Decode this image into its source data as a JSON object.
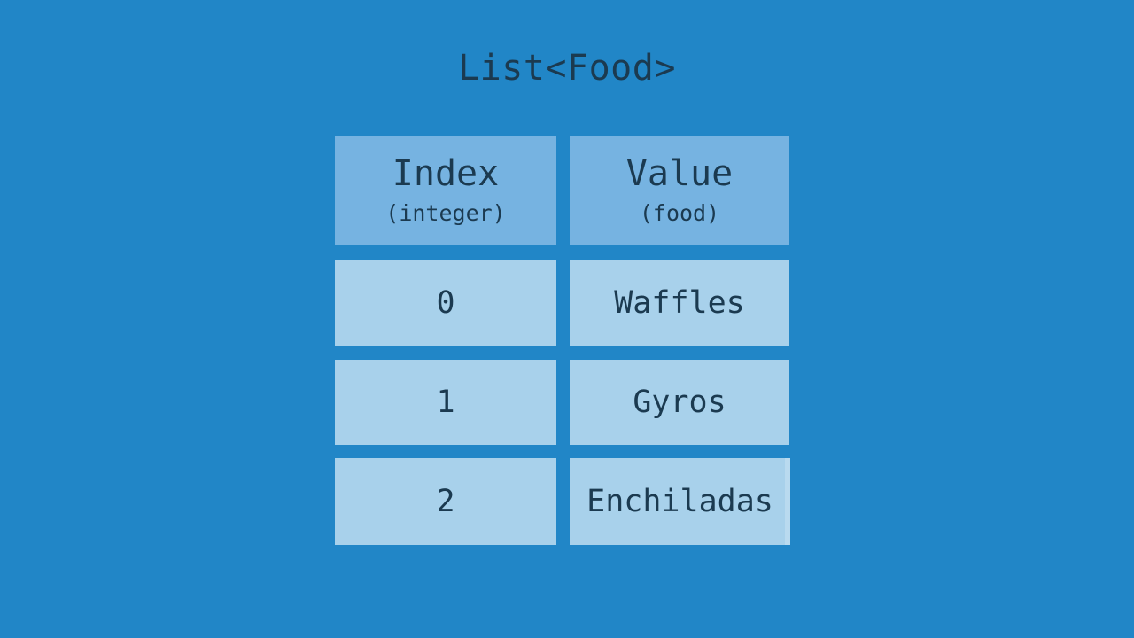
{
  "title": "List<Food>",
  "colors": {
    "background": "#2186c7",
    "header_fill": "#76b3e1",
    "cell_fill": "#a8d1eb",
    "text": "#1b3a50",
    "edge_highlight": "#bcdcf0"
  },
  "table": {
    "columns": [
      {
        "label": "Index",
        "type_label": "(integer)"
      },
      {
        "label": "Value",
        "type_label": "(food)"
      }
    ],
    "rows": [
      {
        "index": "0",
        "value": "Waffles"
      },
      {
        "index": "1",
        "value": "Gyros"
      },
      {
        "index": "2",
        "value": "Enchiladas"
      }
    ]
  }
}
